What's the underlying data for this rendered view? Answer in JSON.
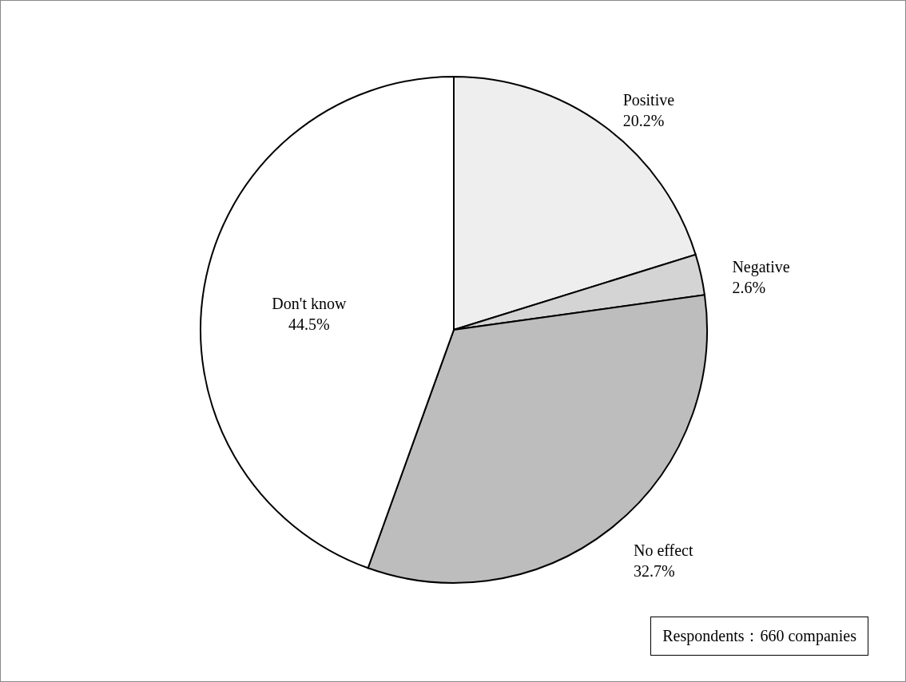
{
  "chart_data": {
    "type": "pie",
    "categories": [
      "Positive",
      "Negative",
      "No effect",
      "Don't know"
    ],
    "values": [
      20.2,
      2.6,
      32.7,
      44.5
    ],
    "value_labels": [
      "20.2%",
      "2.6%",
      "32.7%",
      "44.5%"
    ],
    "colors": [
      "#eeeeee",
      "#d4d4d4",
      "#bdbdbd",
      "#ffffff"
    ],
    "annotations": [
      "Respondents：660 companies"
    ]
  }
}
